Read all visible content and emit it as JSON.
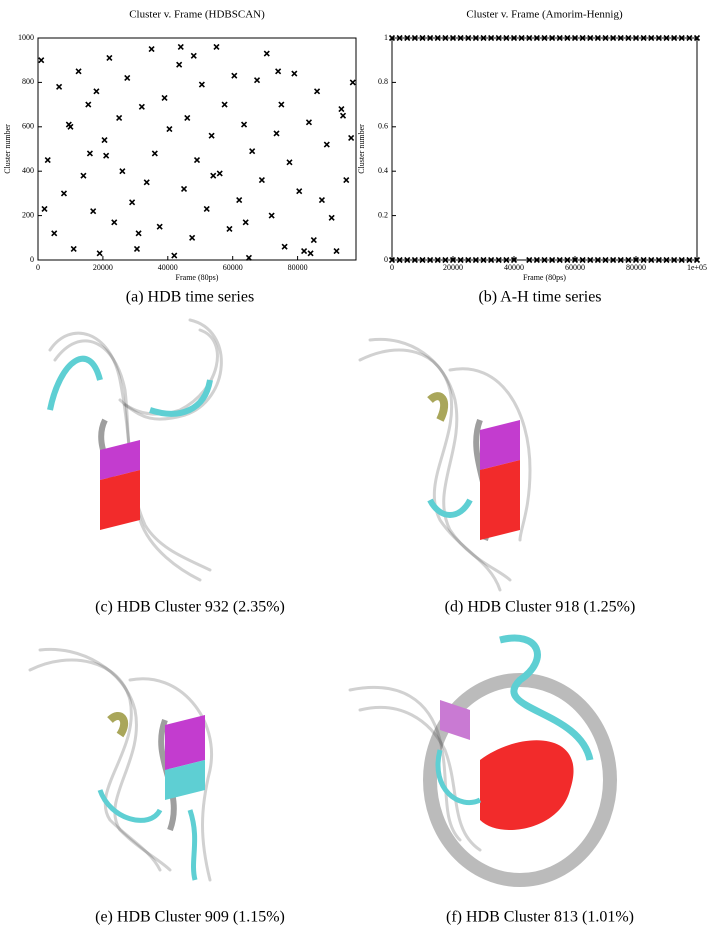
{
  "chart_data": [
    {
      "type": "scatter",
      "title": "Cluster v. Frame (HDBSCAN)",
      "x_label": "Frame (80ps)",
      "y_label": "Cluster number",
      "color": "#000000",
      "xlim": [
        0,
        98000
      ],
      "xticks": [
        0,
        20000,
        40000,
        60000,
        80000
      ],
      "ylim": [
        0,
        1000
      ],
      "yticks": [
        0,
        200,
        400,
        600,
        800,
        1000
      ],
      "x": [
        1000,
        3000,
        5000,
        6500,
        8000,
        9500,
        11000,
        12500,
        14000,
        15500,
        17000,
        18000,
        19000,
        20500,
        22000,
        23500,
        25000,
        26000,
        27500,
        29000,
        30500,
        32000,
        33500,
        35000,
        36000,
        37500,
        39000,
        40500,
        42000,
        43500,
        45000,
        46000,
        47500,
        49000,
        50500,
        52000,
        53500,
        55000,
        56000,
        57500,
        59000,
        60500,
        62000,
        63500,
        65000,
        66000,
        67500,
        69000,
        70500,
        72000,
        73500,
        75000,
        76000,
        77500,
        79000,
        80500,
        82000,
        83500,
        85000,
        86000,
        87500,
        89000,
        90500,
        92000,
        93500,
        95000,
        96500,
        97000,
        2000,
        10000,
        21000,
        31000,
        44000,
        54000,
        64000,
        74000,
        84000,
        94000,
        16000,
        48000
      ],
      "values": [
        900,
        450,
        120,
        780,
        300,
        610,
        50,
        850,
        380,
        700,
        220,
        760,
        30,
        540,
        910,
        170,
        640,
        400,
        820,
        260,
        50,
        690,
        350,
        950,
        480,
        150,
        730,
        590,
        20,
        880,
        320,
        640,
        100,
        450,
        790,
        230,
        560,
        960,
        390,
        700,
        140,
        830,
        270,
        610,
        10,
        490,
        810,
        360,
        930,
        200,
        570,
        700,
        60,
        440,
        840,
        310,
        40,
        620,
        90,
        760,
        270,
        520,
        190,
        40,
        680,
        360,
        550,
        800,
        230,
        600,
        470,
        120,
        960,
        380,
        170,
        850,
        30,
        650,
        480,
        920
      ]
    },
    {
      "type": "scatter",
      "title": "Cluster v. Frame (Amorim-Hennig)",
      "x_label": "Frame (80ps)",
      "y_label": "Cluster number",
      "color": "#000000",
      "xlim": [
        0,
        100000
      ],
      "xticks": [
        0,
        20000,
        40000,
        60000,
        80000,
        {
          "value": 100000,
          "label": "1e+05"
        }
      ],
      "ylim": [
        0,
        1
      ],
      "yticks": [
        0,
        0.2,
        0.4,
        0.6,
        0.8,
        1
      ],
      "x": [
        0,
        2500,
        5000,
        7500,
        10000,
        12500,
        15000,
        17500,
        20000,
        22500,
        25000,
        27500,
        30000,
        32500,
        35000,
        37500,
        40000,
        42500,
        45000,
        47500,
        50000,
        52500,
        55000,
        57500,
        60000,
        62500,
        65000,
        67500,
        70000,
        72500,
        75000,
        77500,
        80000,
        82500,
        85000,
        87500,
        90000,
        92500,
        95000,
        97500,
        100000,
        0,
        2500,
        5000,
        7500,
        10000,
        12500,
        15000,
        17500,
        20000,
        22500,
        25000,
        27500,
        30000,
        32500,
        35000,
        37500,
        40000,
        45000,
        47500,
        50000,
        52500,
        55000,
        57500,
        60000,
        62500,
        65000,
        67500,
        70000,
        72500,
        75000,
        77500,
        80000,
        82500,
        85000,
        87500,
        90000,
        92500,
        95000,
        97500,
        100000
      ],
      "values": [
        1,
        1,
        1,
        1,
        1,
        1,
        1,
        1,
        1,
        1,
        1,
        1,
        1,
        1,
        1,
        1,
        1,
        1,
        1,
        1,
        1,
        1,
        1,
        1,
        1,
        1,
        1,
        1,
        1,
        1,
        1,
        1,
        1,
        1,
        1,
        1,
        1,
        1,
        1,
        1,
        1,
        0,
        0,
        0,
        0,
        0,
        0,
        0,
        0,
        0,
        0,
        0,
        0,
        0,
        0,
        0,
        0,
        0,
        0,
        0,
        0,
        0,
        0,
        0,
        0,
        0,
        0,
        0,
        0,
        0,
        0,
        0,
        0,
        0,
        0,
        0,
        0,
        0,
        0,
        0,
        0
      ]
    }
  ],
  "figure": {
    "captions": [
      "(a) HDB time series",
      "(b) A-H time series",
      "(c) HDB Cluster 932 (2.35%)",
      "(d) HDB Cluster 918 (1.25%)",
      "(e) HDB Cluster 909 (1.15%)",
      "(f) HDB Cluster 813 (1.01%)"
    ]
  }
}
